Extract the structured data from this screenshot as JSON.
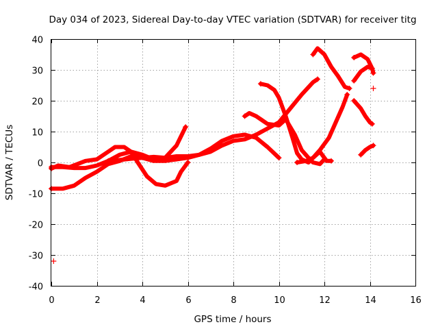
{
  "chart_data": {
    "type": "scatter",
    "title": "Day 034 of 2023, Sidereal Day-to-day VTEC variation (SDTVAR) for receiver titg",
    "xlabel": "GPS time / hours",
    "ylabel": "SDTVAR / TECUs",
    "xlim": [
      0,
      16
    ],
    "ylim": [
      -40,
      40
    ],
    "xticks": [
      0,
      2,
      4,
      6,
      8,
      10,
      12,
      14,
      16
    ],
    "yticks": [
      -40,
      -30,
      -20,
      -10,
      0,
      10,
      20,
      30,
      40
    ],
    "grid": true,
    "marker": "plus",
    "color": "#ff0000",
    "series": [
      {
        "name": "track-1",
        "points": [
          [
            0.0,
            -1.5
          ],
          [
            0.5,
            -1.5
          ],
          [
            1.0,
            -1.8
          ],
          [
            1.5,
            -1.8
          ],
          [
            2.0,
            -1.0
          ],
          [
            2.5,
            0.5
          ],
          [
            3.0,
            0.8
          ],
          [
            3.5,
            1.2
          ],
          [
            4.0,
            1.5
          ],
          [
            4.5,
            1.8
          ],
          [
            5.0,
            1.5
          ],
          [
            5.5,
            2.0
          ],
          [
            6.0,
            2.0
          ],
          [
            6.5,
            2.5
          ],
          [
            7.0,
            4.5
          ],
          [
            7.5,
            7.0
          ],
          [
            8.0,
            8.5
          ],
          [
            8.5,
            9.0
          ],
          [
            9.0,
            8.0
          ],
          [
            9.5,
            5.0
          ],
          [
            10.0,
            1.5
          ]
        ]
      },
      {
        "name": "track-2",
        "points": [
          [
            0.0,
            -8.5
          ],
          [
            0.5,
            -8.5
          ],
          [
            1.0,
            -7.5
          ],
          [
            1.5,
            -5.0
          ],
          [
            2.0,
            -3.0
          ],
          [
            2.5,
            -0.5
          ],
          [
            3.0,
            0.5
          ],
          [
            3.5,
            2.0
          ],
          [
            4.0,
            1.5
          ],
          [
            4.5,
            0.5
          ],
          [
            5.0,
            0.5
          ],
          [
            5.5,
            1.0
          ],
          [
            6.0,
            1.5
          ],
          [
            6.5,
            2.5
          ],
          [
            7.0,
            3.5
          ],
          [
            7.5,
            5.5
          ],
          [
            8.0,
            7.0
          ],
          [
            8.5,
            7.5
          ],
          [
            9.0,
            9.0
          ],
          [
            9.5,
            11.0
          ],
          [
            10.0,
            13.0
          ],
          [
            10.5,
            17.5
          ],
          [
            11.0,
            22.0
          ],
          [
            11.5,
            26.0
          ],
          [
            11.7,
            27.0
          ]
        ]
      },
      {
        "name": "track-3",
        "points": [
          [
            0.0,
            -2.0
          ],
          [
            0.3,
            -1.0
          ],
          [
            0.8,
            -1.5
          ],
          [
            1.5,
            0.5
          ],
          [
            2.0,
            1.0
          ],
          [
            2.5,
            3.5
          ],
          [
            2.8,
            5.0
          ],
          [
            3.2,
            5.0
          ],
          [
            3.5,
            3.5
          ],
          [
            3.8,
            0.0
          ],
          [
            4.2,
            -4.5
          ],
          [
            4.6,
            -7.0
          ],
          [
            5.0,
            -7.5
          ],
          [
            5.5,
            -6.0
          ],
          [
            5.7,
            -3.0
          ],
          [
            6.0,
            0.0
          ]
        ]
      },
      {
        "name": "track-4",
        "points": [
          [
            2.5,
            0.5
          ],
          [
            3.0,
            2.5
          ],
          [
            3.5,
            3.5
          ],
          [
            4.0,
            2.5
          ],
          [
            4.5,
            1.0
          ],
          [
            5.0,
            1.5
          ],
          [
            5.5,
            5.5
          ],
          [
            5.9,
            11.5
          ]
        ]
      },
      {
        "name": "track-5",
        "points": [
          [
            8.5,
            15.0
          ],
          [
            8.7,
            16.0
          ],
          [
            9.0,
            15.0
          ],
          [
            9.5,
            12.5
          ],
          [
            10.0,
            12.0
          ],
          [
            10.3,
            14.0
          ],
          [
            10.7,
            9.0
          ],
          [
            11.0,
            4.0
          ],
          [
            11.3,
            1.5
          ],
          [
            11.5,
            0.0
          ],
          [
            11.8,
            -0.5
          ],
          [
            12.0,
            1.0
          ]
        ]
      },
      {
        "name": "track-6",
        "points": [
          [
            9.2,
            25.5
          ],
          [
            9.5,
            25.0
          ],
          [
            9.8,
            23.5
          ],
          [
            10.0,
            21.0
          ],
          [
            10.3,
            15.0
          ],
          [
            10.6,
            8.0
          ],
          [
            10.8,
            3.0
          ],
          [
            11.0,
            1.0
          ],
          [
            11.3,
            0.0
          ],
          [
            11.5,
            1.5
          ],
          [
            11.8,
            4.0
          ],
          [
            12.2,
            8.0
          ],
          [
            12.5,
            13.0
          ],
          [
            12.8,
            18.0
          ],
          [
            13.0,
            22.0
          ]
        ]
      },
      {
        "name": "track-7",
        "points": [
          [
            10.8,
            0.0
          ],
          [
            11.2,
            0.5
          ],
          [
            11.5,
            1.5
          ],
          [
            11.8,
            3.5
          ],
          [
            12.1,
            0.5
          ],
          [
            12.3,
            0.5
          ]
        ]
      },
      {
        "name": "track-8",
        "points": [
          [
            11.5,
            35.0
          ],
          [
            11.7,
            37.0
          ],
          [
            12.0,
            35.0
          ],
          [
            12.3,
            31.0
          ],
          [
            12.6,
            28.0
          ],
          [
            12.9,
            24.5
          ],
          [
            13.1,
            24.0
          ]
        ]
      },
      {
        "name": "track-9",
        "points": [
          [
            13.3,
            34.0
          ],
          [
            13.6,
            35.0
          ],
          [
            13.9,
            33.5
          ],
          [
            14.1,
            30.5
          ]
        ]
      },
      {
        "name": "track-10",
        "points": [
          [
            13.3,
            26.5
          ],
          [
            13.6,
            29.5
          ],
          [
            13.9,
            31.0
          ],
          [
            14.1,
            30.5
          ],
          [
            14.15,
            29.0
          ]
        ]
      },
      {
        "name": "track-11",
        "points": [
          [
            13.3,
            20.0
          ],
          [
            13.6,
            17.5
          ],
          [
            13.8,
            15.0
          ],
          [
            14.0,
            13.0
          ],
          [
            14.1,
            12.5
          ]
        ]
      },
      {
        "name": "track-12",
        "points": [
          [
            13.6,
            2.5
          ],
          [
            13.8,
            4.0
          ],
          [
            14.0,
            5.0
          ],
          [
            14.15,
            5.5
          ]
        ]
      }
    ],
    "isolated_points": [
      [
        0.1,
        -32.0
      ],
      [
        14.15,
        24.0
      ]
    ]
  }
}
